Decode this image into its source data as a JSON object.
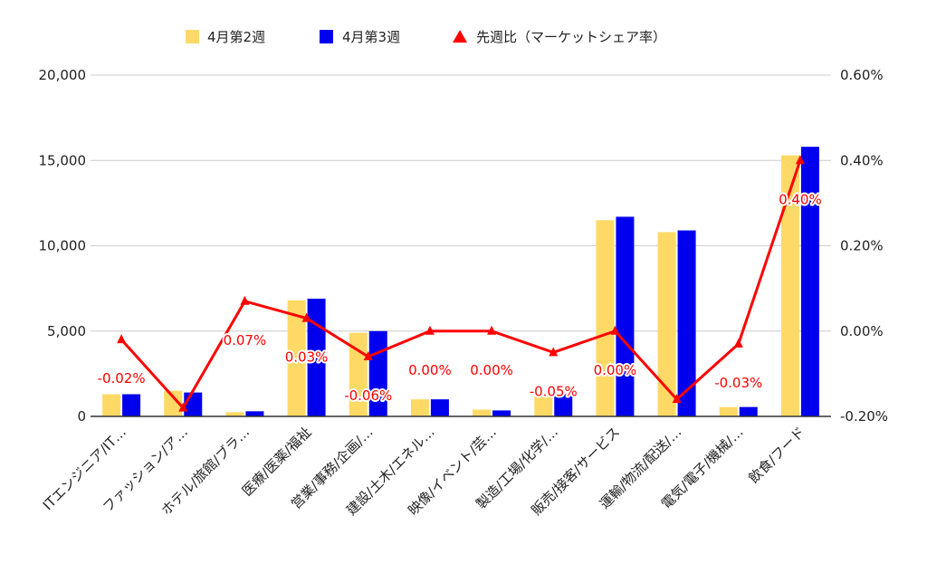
{
  "chart_data": {
    "type": "bar",
    "categories": [
      "ITエンジニア/IT…",
      "ファッション/ア…",
      "ホテル/旅館/ブラ…",
      "医療/医薬/福祉",
      "営業/事務/企画/…",
      "建設/土木/エネル…",
      "映像/イベント/芸…",
      "製造/工場/化学/…",
      "販売/接客/サービス",
      "運輸/物流/配送/…",
      "電気/電子/機械/…",
      "飲食/フード"
    ],
    "series": [
      {
        "name": "4月第2週",
        "type": "bar",
        "axis": "left",
        "color": "#ffd966",
        "values": [
          1300,
          1500,
          250,
          6800,
          4900,
          1000,
          400,
          1200,
          11500,
          10800,
          550,
          15300
        ]
      },
      {
        "name": "4月第3週",
        "type": "bar",
        "axis": "left",
        "color": "#0000ee",
        "values": [
          1300,
          1400,
          300,
          6900,
          5000,
          1000,
          350,
          1300,
          11700,
          10900,
          550,
          15800
        ]
      },
      {
        "name": "先週比（マーケットシェア率）",
        "type": "line",
        "axis": "right",
        "color": "#ff0000",
        "values": [
          -0.0002,
          -0.0018,
          0.0007,
          0.0003,
          -0.0006,
          0.0,
          0.0,
          -0.0005,
          0.0,
          -0.0016,
          -0.0003,
          0.004
        ],
        "data_labels": [
          "-0.02%",
          "",
          "0.07%",
          "0.03%",
          "-0.06%",
          "0.00%",
          "0.00%",
          "-0.05%",
          "0.00%",
          "",
          "-0.03%",
          "0.40%"
        ]
      }
    ],
    "y_left": {
      "min": 0,
      "max": 20000,
      "ticks": [
        0,
        5000,
        10000,
        15000,
        20000
      ],
      "tick_labels": [
        "0",
        "5,000",
        "10,000",
        "15,000",
        "20,000"
      ]
    },
    "y_right": {
      "min": -0.002,
      "max": 0.006,
      "ticks": [
        -0.002,
        0.0,
        0.002,
        0.004,
        0.006
      ],
      "tick_labels": [
        "-0.20%",
        "0.00%",
        "0.20%",
        "0.40%",
        "0.60%"
      ]
    },
    "legend": {
      "position": "top",
      "items": [
        "4月第2週",
        "4月第3週",
        "先週比（マーケットシェア率）"
      ]
    },
    "grid": true
  }
}
